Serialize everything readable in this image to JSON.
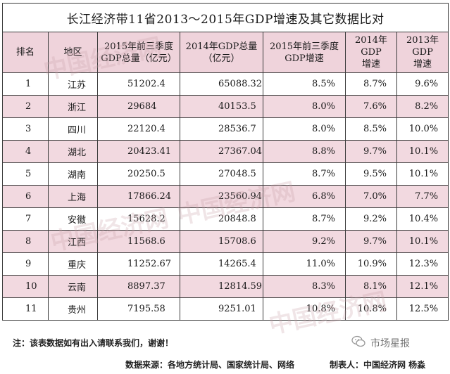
{
  "table": {
    "title": "长江经济带11省2013～2015年GDP增速及其它数据比对",
    "headers": {
      "rank": "排名",
      "region": "地区",
      "gdp_2015_q3_l1": "2015年前三季度",
      "gdp_2015_q3_l2": "GDP总量（亿元）",
      "gdp_2014_l1": "2014年GDP总量",
      "gdp_2014_l2": "（亿元）",
      "growth_2015_q3_l1": "2015年前三季度",
      "growth_2015_q3_l2": "GDP增速",
      "growth_2014_l1": "2014年GDP",
      "growth_2014_l2": "增速",
      "growth_2013_l1": "2013年GDP",
      "growth_2013_l2": "增速"
    },
    "rows": [
      {
        "rank": "1",
        "region": "江苏",
        "gdp2015q3": "51202.4",
        "gdp2014": "65088.32",
        "g2015q3": "8.5%",
        "g2014": "8.7%",
        "g2013": "9.6%"
      },
      {
        "rank": "2",
        "region": "浙江",
        "gdp2015q3": "29684",
        "gdp2014": "40153.5",
        "g2015q3": "8.0%",
        "g2014": "7.6%",
        "g2013": "8.2%"
      },
      {
        "rank": "3",
        "region": "四川",
        "gdp2015q3": "22120.4",
        "gdp2014": "28536.7",
        "g2015q3": "8.0%",
        "g2014": "8.5%",
        "g2013": "10.0%"
      },
      {
        "rank": "4",
        "region": "湖北",
        "gdp2015q3": "20423.41",
        "gdp2014": "27367.04",
        "g2015q3": "8.8%",
        "g2014": "9.7%",
        "g2013": "10.1%"
      },
      {
        "rank": "5",
        "region": "湖南",
        "gdp2015q3": "20250.5",
        "gdp2014": "27048.5",
        "g2015q3": "8.7%",
        "g2014": "9.5%",
        "g2013": "10.1%"
      },
      {
        "rank": "6",
        "region": "上海",
        "gdp2015q3": "17866.24",
        "gdp2014": "23560.94",
        "g2015q3": "6.8%",
        "g2014": "7.0%",
        "g2013": "7.7%"
      },
      {
        "rank": "7",
        "region": "安徽",
        "gdp2015q3": "15628.2",
        "gdp2014": "20848.8",
        "g2015q3": "8.7%",
        "g2014": "9.2%",
        "g2013": "10.4%"
      },
      {
        "rank": "8",
        "region": "江西",
        "gdp2015q3": "11568.6",
        "gdp2014": "15708.6",
        "g2015q3": "9.2%",
        "g2014": "9.7%",
        "g2013": "10.1%"
      },
      {
        "rank": "9",
        "region": "重庆",
        "gdp2015q3": "11252.67",
        "gdp2014": "14265.4",
        "g2015q3": "11.0%",
        "g2014": "10.9%",
        "g2013": "12.3%"
      },
      {
        "rank": "10",
        "region": "云南",
        "gdp2015q3": "8897.37",
        "gdp2014": "12814.59",
        "g2015q3": "8.3%",
        "g2014": "8.1%",
        "g2013": "12.1%"
      },
      {
        "rank": "11",
        "region": "贵州",
        "gdp2015q3": "7195.58",
        "gdp2014": "9251.01",
        "g2015q3": "10.8%",
        "g2014": "10.8%",
        "g2013": "12.5%"
      }
    ]
  },
  "footer": {
    "note": "注：该表数据如有出入请联系我们，谢谢！",
    "source": "数据来源：各地方统计局、国家统计局、网络",
    "maker": "制表人：中国经济网 杨淼",
    "brand": "市场星报",
    "brand_icon": "wechat-icon"
  },
  "watermarks": [
    "中国经济网",
    "中国经济网",
    "中国经济网",
    "中国经济网"
  ],
  "colors": {
    "header_bg": "#efd3db",
    "alt_row_bg": "#f2d9e0",
    "border": "#3a3a3a"
  }
}
